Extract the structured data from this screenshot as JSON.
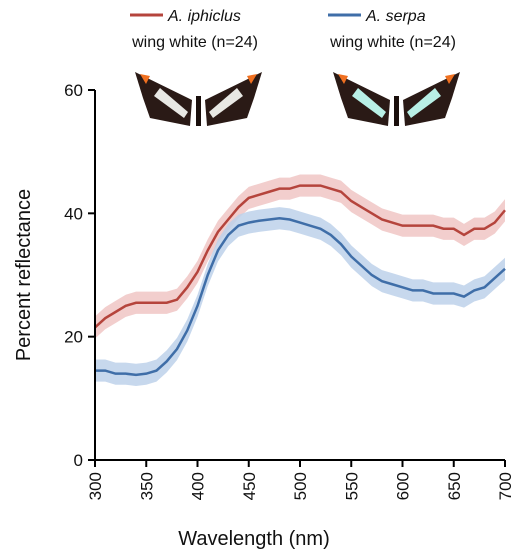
{
  "chart_data": {
    "type": "line",
    "xlabel": "Wavelength (nm)",
    "ylabel": "Percent reflectance",
    "xlim": [
      300,
      700
    ],
    "xticks": [
      300,
      350,
      400,
      450,
      500,
      550,
      600,
      650,
      700
    ],
    "ylim": [
      0,
      60
    ],
    "yticks": [
      0,
      20,
      40,
      60
    ],
    "x": [
      300,
      310,
      320,
      330,
      340,
      350,
      360,
      370,
      380,
      390,
      400,
      410,
      420,
      430,
      440,
      450,
      460,
      470,
      480,
      490,
      500,
      510,
      520,
      530,
      540,
      550,
      560,
      570,
      580,
      590,
      600,
      610,
      620,
      630,
      640,
      650,
      660,
      670,
      680,
      690,
      700
    ],
    "series": [
      {
        "name": "A. iphiclus",
        "label": "wing white (n=24)",
        "color": "#b5443c",
        "band_color": "#f0c6c4",
        "error": 1.8,
        "values": [
          21.5,
          23,
          24,
          25,
          25.5,
          25.5,
          25.5,
          25.5,
          26,
          28,
          30.5,
          34,
          37,
          39,
          41,
          42.5,
          43,
          43.5,
          44,
          44,
          44.5,
          44.5,
          44.5,
          44,
          43.5,
          42,
          41,
          40,
          39,
          38.5,
          38,
          38,
          38,
          38,
          37.5,
          37.5,
          36.5,
          37.5,
          37.5,
          38.5,
          40.5
        ]
      },
      {
        "name": "A. serpa",
        "label": "wing white (n=24)",
        "color": "#3f6ea8",
        "band_color": "#bdd1ea",
        "error": 1.8,
        "values": [
          14.5,
          14.5,
          14,
          14,
          13.8,
          14,
          14.5,
          16,
          18,
          21,
          25,
          30,
          34,
          36.5,
          38,
          38.5,
          38.8,
          39,
          39.2,
          39,
          38.5,
          38,
          37.5,
          36.5,
          35,
          33,
          31.5,
          30,
          29,
          28.5,
          28,
          27.5,
          27.5,
          27,
          27,
          27,
          26.5,
          27.5,
          28,
          29.5,
          31
        ]
      }
    ]
  }
}
